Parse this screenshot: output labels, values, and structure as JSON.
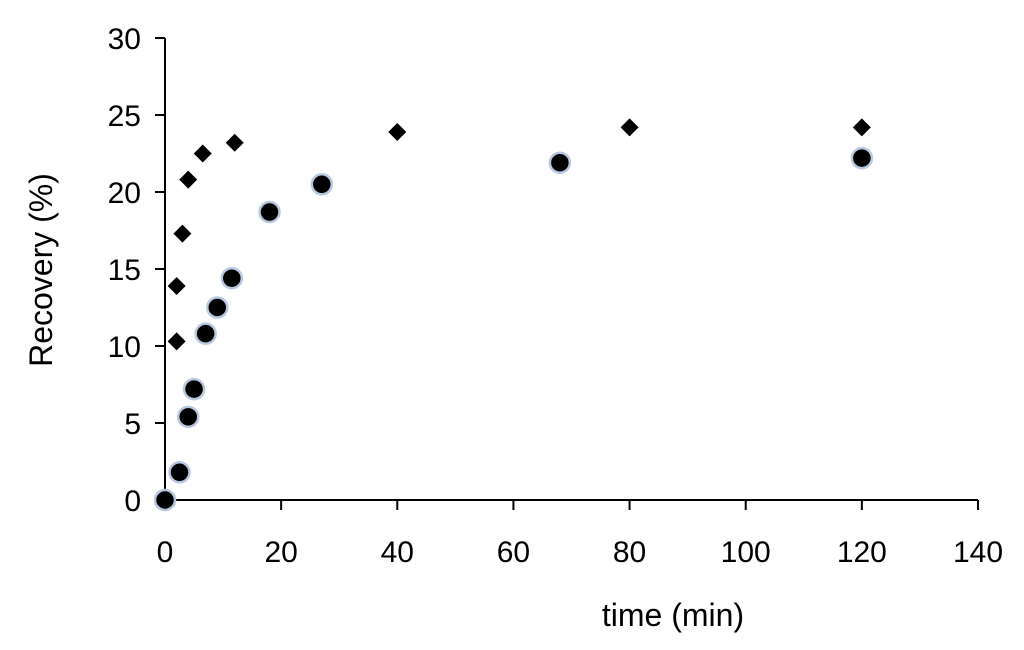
{
  "chart_data": {
    "type": "scatter",
    "title": "",
    "xlabel": "time (min)",
    "ylabel": "Recovery (%)",
    "xlim": [
      0,
      140
    ],
    "ylim": [
      0,
      30
    ],
    "xticks": [
      0,
      20,
      40,
      60,
      80,
      100,
      120,
      140
    ],
    "yticks": [
      0,
      5,
      10,
      15,
      20,
      25,
      30
    ],
    "grid": false,
    "series": [
      {
        "marker": "diamond",
        "color": "#000000",
        "points": [
          {
            "x": 2,
            "y": 10.3
          },
          {
            "x": 2,
            "y": 13.9
          },
          {
            "x": 3,
            "y": 17.3
          },
          {
            "x": 4,
            "y": 20.8
          },
          {
            "x": 6.5,
            "y": 22.5
          },
          {
            "x": 12,
            "y": 23.2
          },
          {
            "x": 40,
            "y": 23.9
          },
          {
            "x": 80,
            "y": 24.2
          },
          {
            "x": 120,
            "y": 24.2
          }
        ]
      },
      {
        "marker": "circle",
        "color": "#000000",
        "edge_color": "#b8c8e0",
        "points": [
          {
            "x": 0,
            "y": 0
          },
          {
            "x": 2.5,
            "y": 1.8
          },
          {
            "x": 4,
            "y": 5.4
          },
          {
            "x": 5,
            "y": 7.2
          },
          {
            "x": 7,
            "y": 10.8
          },
          {
            "x": 9,
            "y": 12.5
          },
          {
            "x": 11.5,
            "y": 14.4
          },
          {
            "x": 18,
            "y": 18.7
          },
          {
            "x": 27,
            "y": 20.5
          },
          {
            "x": 68,
            "y": 21.9
          },
          {
            "x": 120,
            "y": 22.2
          }
        ]
      }
    ]
  }
}
